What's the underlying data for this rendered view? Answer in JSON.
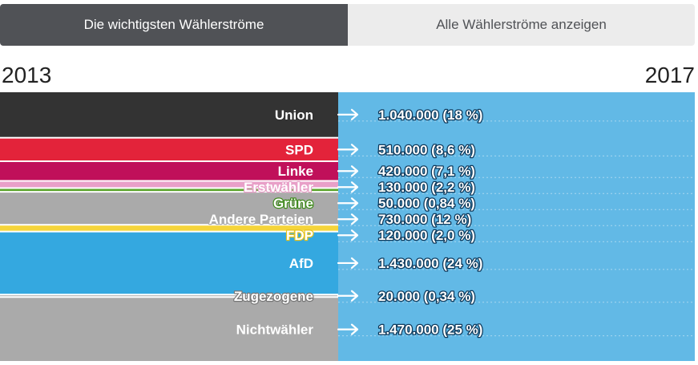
{
  "tabs": {
    "active_label": "Die wichtigsten Wählerströme",
    "inactive_label": "Alle Wählerströme anzeigen"
  },
  "years": {
    "from": "2013",
    "to": "2017"
  },
  "colors": {
    "target_block": "#62b9e6",
    "flow_label_outline": "#0f3a5c",
    "active_tab": "#505256",
    "inactive_tab": "#ececec"
  },
  "chart_data": {
    "type": "flow",
    "source_year": "2013",
    "target_year": "2017",
    "target": "AfD",
    "flows": [
      {
        "source": "Union",
        "voters": 1040000,
        "share_pct": 18,
        "label": "1.040.000 (18 %)",
        "color": "#333333",
        "label_color": "#ffffff",
        "label_outline": "#333333"
      },
      {
        "source": "SPD",
        "voters": 510000,
        "share_pct": 8.6,
        "label": "510.000 (8,6 %)",
        "color": "#e3233a",
        "label_color": "#ffffff",
        "label_outline": "#e3233a"
      },
      {
        "source": "Linke",
        "voters": 420000,
        "share_pct": 7.1,
        "label": "420.000 (7,1 %)",
        "color": "#c0105a",
        "label_color": "#ffffff",
        "label_outline": "#c0105a"
      },
      {
        "source": "Erstwähler",
        "voters": 130000,
        "share_pct": 2.2,
        "label": "130.000 (2,2 %)",
        "color": "#e8a0c8",
        "label_color": "#ffffff",
        "label_outline": "#e8a0c8"
      },
      {
        "source": "Grüne",
        "voters": 50000,
        "share_pct": 0.84,
        "label": "50.000 (0,84 %)",
        "color": "#5ca52c",
        "label_color": "#ffffff",
        "label_outline": "#3f8a1c"
      },
      {
        "source": "Andere Parteien",
        "voters": 730000,
        "share_pct": 12,
        "label": "730.000 (12 %)",
        "color": "#aaaaaa",
        "label_color": "#ffffff",
        "label_outline": "#aaaaaa"
      },
      {
        "source": "FDP",
        "voters": 120000,
        "share_pct": 2.0,
        "label": "120.000 (2,0 %)",
        "color": "#f5d43a",
        "label_color": "#ffffff",
        "label_outline": "#e8c31d"
      },
      {
        "source": "AfD",
        "voters": 1430000,
        "share_pct": 24,
        "label": "1.430.000 (24 %)",
        "color": "#34a8e0",
        "label_color": "#ffffff",
        "label_outline": "#34a8e0"
      },
      {
        "source": "Zugezogene",
        "voters": 20000,
        "share_pct": 0.34,
        "label": "20.000 (0,34 %)",
        "color": "#aaaaaa",
        "label_color": "#ffffff",
        "label_outline": "#777777"
      },
      {
        "source": "Nichtwähler",
        "voters": 1470000,
        "share_pct": 25,
        "label": "1.470.000 (25 %)",
        "color": "#aaaaaa",
        "label_color": "#ffffff",
        "label_outline": "#aaaaaa"
      }
    ]
  }
}
